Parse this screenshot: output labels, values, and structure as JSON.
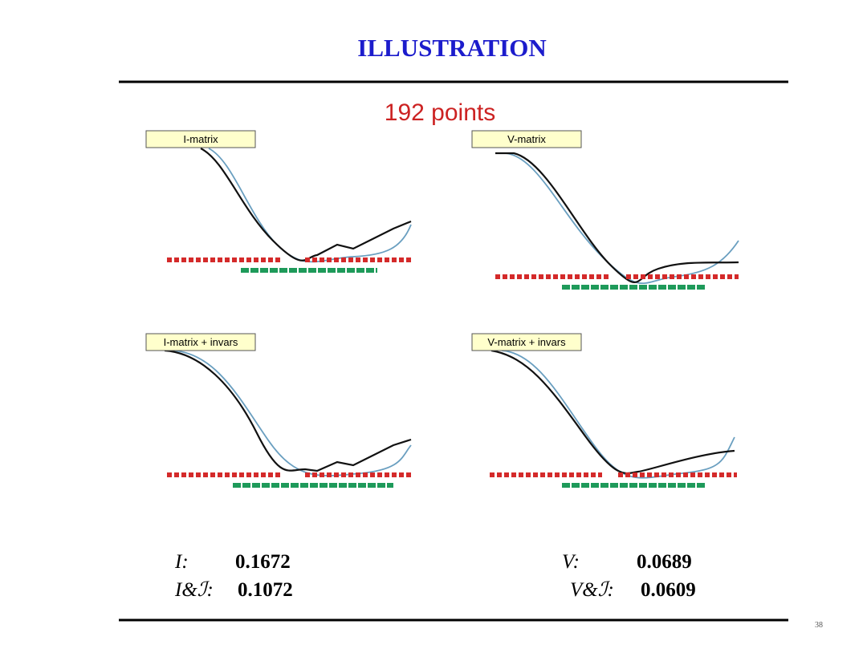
{
  "header": {
    "title": "ILLUSTRATION"
  },
  "figure": {
    "title": "192 points",
    "panels": [
      {
        "label": "I-matrix"
      },
      {
        "label": "V-matrix"
      },
      {
        "label": "I-matrix + invars"
      },
      {
        "label": "V-matrix + invars"
      }
    ]
  },
  "results": {
    "left": [
      {
        "label": "I:",
        "value": "0.1672"
      },
      {
        "label": "I&ℐ:",
        "value": "0.1072"
      }
    ],
    "right": [
      {
        "label": "V:",
        "value": "0.0689"
      },
      {
        "label": "V&ℐ:",
        "value": "0.0609"
      }
    ]
  },
  "footer": {
    "page": "38"
  }
}
